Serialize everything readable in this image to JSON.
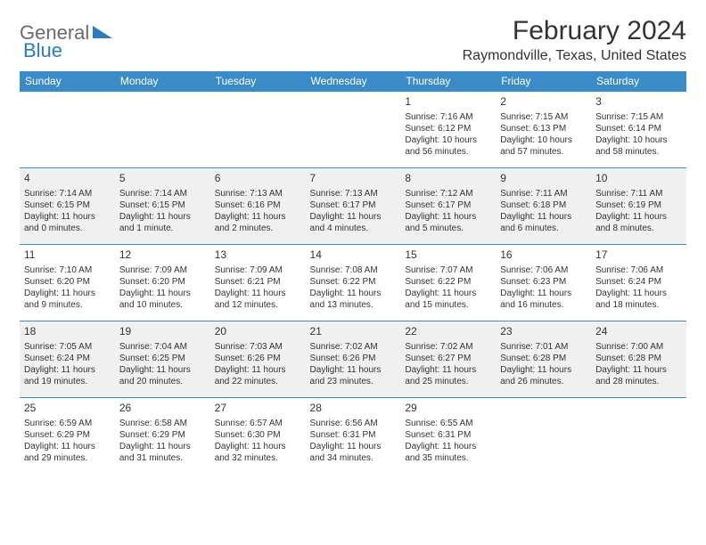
{
  "logo": {
    "general": "General",
    "blue": "Blue"
  },
  "title": "February 2024",
  "location": "Raymondville, Texas, United States",
  "colors": {
    "header_bg": "#3b8bc8",
    "header_text": "#ffffff",
    "row_alt_bg": "#f0f0f0",
    "border": "#3b8bc8",
    "logo_gray": "#6b6b6b",
    "logo_blue": "#2b7bbd",
    "text": "#333333"
  },
  "weekdays": [
    "Sunday",
    "Monday",
    "Tuesday",
    "Wednesday",
    "Thursday",
    "Friday",
    "Saturday"
  ],
  "weeks": [
    [
      null,
      null,
      null,
      null,
      {
        "n": "1",
        "sr": "Sunrise: 7:16 AM",
        "ss": "Sunset: 6:12 PM",
        "dl1": "Daylight: 10 hours",
        "dl2": "and 56 minutes."
      },
      {
        "n": "2",
        "sr": "Sunrise: 7:15 AM",
        "ss": "Sunset: 6:13 PM",
        "dl1": "Daylight: 10 hours",
        "dl2": "and 57 minutes."
      },
      {
        "n": "3",
        "sr": "Sunrise: 7:15 AM",
        "ss": "Sunset: 6:14 PM",
        "dl1": "Daylight: 10 hours",
        "dl2": "and 58 minutes."
      }
    ],
    [
      {
        "n": "4",
        "sr": "Sunrise: 7:14 AM",
        "ss": "Sunset: 6:15 PM",
        "dl1": "Daylight: 11 hours",
        "dl2": "and 0 minutes."
      },
      {
        "n": "5",
        "sr": "Sunrise: 7:14 AM",
        "ss": "Sunset: 6:15 PM",
        "dl1": "Daylight: 11 hours",
        "dl2": "and 1 minute."
      },
      {
        "n": "6",
        "sr": "Sunrise: 7:13 AM",
        "ss": "Sunset: 6:16 PM",
        "dl1": "Daylight: 11 hours",
        "dl2": "and 2 minutes."
      },
      {
        "n": "7",
        "sr": "Sunrise: 7:13 AM",
        "ss": "Sunset: 6:17 PM",
        "dl1": "Daylight: 11 hours",
        "dl2": "and 4 minutes."
      },
      {
        "n": "8",
        "sr": "Sunrise: 7:12 AM",
        "ss": "Sunset: 6:17 PM",
        "dl1": "Daylight: 11 hours",
        "dl2": "and 5 minutes."
      },
      {
        "n": "9",
        "sr": "Sunrise: 7:11 AM",
        "ss": "Sunset: 6:18 PM",
        "dl1": "Daylight: 11 hours",
        "dl2": "and 6 minutes."
      },
      {
        "n": "10",
        "sr": "Sunrise: 7:11 AM",
        "ss": "Sunset: 6:19 PM",
        "dl1": "Daylight: 11 hours",
        "dl2": "and 8 minutes."
      }
    ],
    [
      {
        "n": "11",
        "sr": "Sunrise: 7:10 AM",
        "ss": "Sunset: 6:20 PM",
        "dl1": "Daylight: 11 hours",
        "dl2": "and 9 minutes."
      },
      {
        "n": "12",
        "sr": "Sunrise: 7:09 AM",
        "ss": "Sunset: 6:20 PM",
        "dl1": "Daylight: 11 hours",
        "dl2": "and 10 minutes."
      },
      {
        "n": "13",
        "sr": "Sunrise: 7:09 AM",
        "ss": "Sunset: 6:21 PM",
        "dl1": "Daylight: 11 hours",
        "dl2": "and 12 minutes."
      },
      {
        "n": "14",
        "sr": "Sunrise: 7:08 AM",
        "ss": "Sunset: 6:22 PM",
        "dl1": "Daylight: 11 hours",
        "dl2": "and 13 minutes."
      },
      {
        "n": "15",
        "sr": "Sunrise: 7:07 AM",
        "ss": "Sunset: 6:22 PM",
        "dl1": "Daylight: 11 hours",
        "dl2": "and 15 minutes."
      },
      {
        "n": "16",
        "sr": "Sunrise: 7:06 AM",
        "ss": "Sunset: 6:23 PM",
        "dl1": "Daylight: 11 hours",
        "dl2": "and 16 minutes."
      },
      {
        "n": "17",
        "sr": "Sunrise: 7:06 AM",
        "ss": "Sunset: 6:24 PM",
        "dl1": "Daylight: 11 hours",
        "dl2": "and 18 minutes."
      }
    ],
    [
      {
        "n": "18",
        "sr": "Sunrise: 7:05 AM",
        "ss": "Sunset: 6:24 PM",
        "dl1": "Daylight: 11 hours",
        "dl2": "and 19 minutes."
      },
      {
        "n": "19",
        "sr": "Sunrise: 7:04 AM",
        "ss": "Sunset: 6:25 PM",
        "dl1": "Daylight: 11 hours",
        "dl2": "and 20 minutes."
      },
      {
        "n": "20",
        "sr": "Sunrise: 7:03 AM",
        "ss": "Sunset: 6:26 PM",
        "dl1": "Daylight: 11 hours",
        "dl2": "and 22 minutes."
      },
      {
        "n": "21",
        "sr": "Sunrise: 7:02 AM",
        "ss": "Sunset: 6:26 PM",
        "dl1": "Daylight: 11 hours",
        "dl2": "and 23 minutes."
      },
      {
        "n": "22",
        "sr": "Sunrise: 7:02 AM",
        "ss": "Sunset: 6:27 PM",
        "dl1": "Daylight: 11 hours",
        "dl2": "and 25 minutes."
      },
      {
        "n": "23",
        "sr": "Sunrise: 7:01 AM",
        "ss": "Sunset: 6:28 PM",
        "dl1": "Daylight: 11 hours",
        "dl2": "and 26 minutes."
      },
      {
        "n": "24",
        "sr": "Sunrise: 7:00 AM",
        "ss": "Sunset: 6:28 PM",
        "dl1": "Daylight: 11 hours",
        "dl2": "and 28 minutes."
      }
    ],
    [
      {
        "n": "25",
        "sr": "Sunrise: 6:59 AM",
        "ss": "Sunset: 6:29 PM",
        "dl1": "Daylight: 11 hours",
        "dl2": "and 29 minutes."
      },
      {
        "n": "26",
        "sr": "Sunrise: 6:58 AM",
        "ss": "Sunset: 6:29 PM",
        "dl1": "Daylight: 11 hours",
        "dl2": "and 31 minutes."
      },
      {
        "n": "27",
        "sr": "Sunrise: 6:57 AM",
        "ss": "Sunset: 6:30 PM",
        "dl1": "Daylight: 11 hours",
        "dl2": "and 32 minutes."
      },
      {
        "n": "28",
        "sr": "Sunrise: 6:56 AM",
        "ss": "Sunset: 6:31 PM",
        "dl1": "Daylight: 11 hours",
        "dl2": "and 34 minutes."
      },
      {
        "n": "29",
        "sr": "Sunrise: 6:55 AM",
        "ss": "Sunset: 6:31 PM",
        "dl1": "Daylight: 11 hours",
        "dl2": "and 35 minutes."
      },
      null,
      null
    ]
  ]
}
